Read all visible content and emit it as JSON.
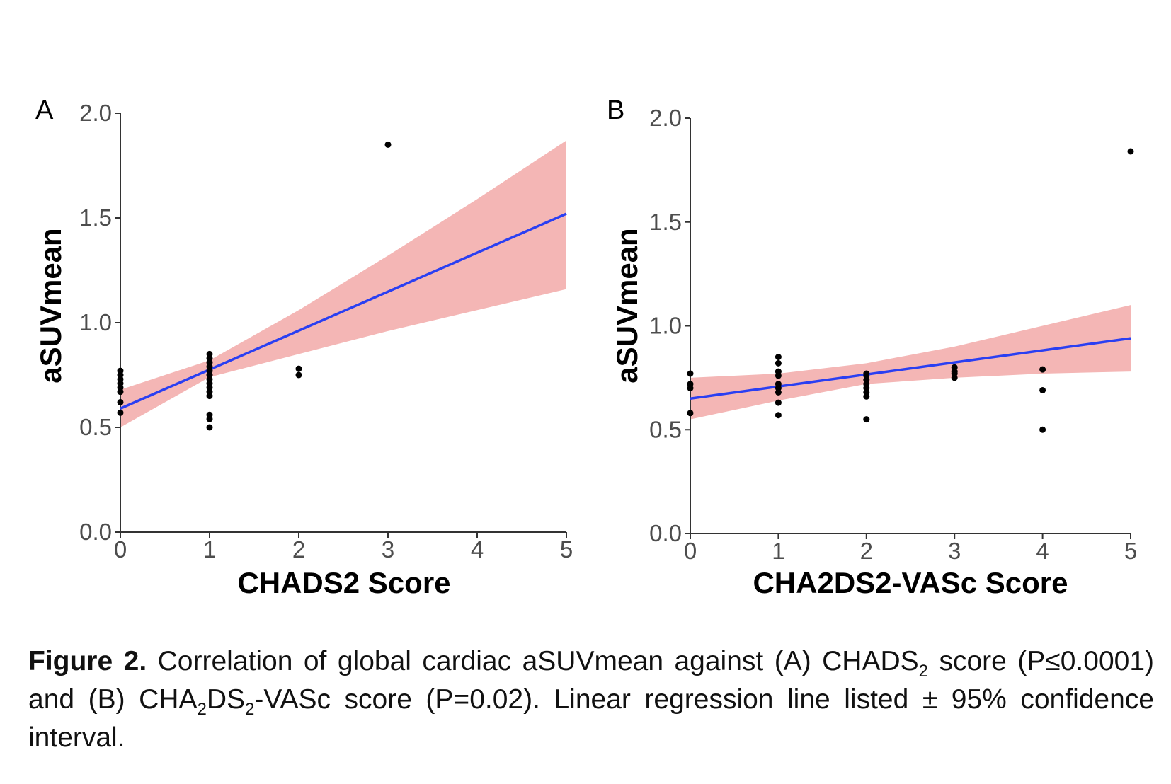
{
  "chart_data": [
    {
      "type": "scatter",
      "panel": "A",
      "xlabel": "CHADS2 Score",
      "ylabel": "aSUVmean",
      "xlim": [
        0,
        5
      ],
      "ylim": [
        0,
        2.0
      ],
      "xticks": [
        "0",
        "1",
        "2",
        "3",
        "4",
        "5"
      ],
      "yticks": [
        "0.0",
        "0.5",
        "1.0",
        "1.5",
        "2.0"
      ],
      "points": [
        [
          0,
          0.57
        ],
        [
          0,
          0.62
        ],
        [
          0,
          0.67
        ],
        [
          0,
          0.69
        ],
        [
          0,
          0.71
        ],
        [
          0,
          0.73
        ],
        [
          0,
          0.75
        ],
        [
          0,
          0.77
        ],
        [
          1,
          0.5
        ],
        [
          1,
          0.54
        ],
        [
          1,
          0.56
        ],
        [
          1,
          0.65
        ],
        [
          1,
          0.67
        ],
        [
          1,
          0.69
        ],
        [
          1,
          0.71
        ],
        [
          1,
          0.73
        ],
        [
          1,
          0.75
        ],
        [
          1,
          0.77
        ],
        [
          1,
          0.79
        ],
        [
          1,
          0.81
        ],
        [
          1,
          0.83
        ],
        [
          1,
          0.85
        ],
        [
          2,
          0.75
        ],
        [
          2,
          0.78
        ],
        [
          3,
          1.85
        ]
      ],
      "fit": {
        "x": [
          0,
          5
        ],
        "y": [
          0.59,
          1.52
        ]
      },
      "ci": {
        "x": [
          0,
          1,
          2,
          3,
          4,
          5
        ],
        "lower": [
          0.5,
          0.74,
          0.85,
          0.96,
          1.06,
          1.16
        ],
        "upper": [
          0.68,
          0.82,
          1.06,
          1.32,
          1.59,
          1.87
        ]
      },
      "line_color": "#2a3ff2",
      "band_color": "#f4b6b5"
    },
    {
      "type": "scatter",
      "panel": "B",
      "xlabel": "CHA2DS2-VASc Score",
      "ylabel": "aSUVmean",
      "xlim": [
        0,
        5
      ],
      "ylim": [
        0,
        2.0
      ],
      "xticks": [
        "0",
        "1",
        "2",
        "3",
        "4",
        "5"
      ],
      "yticks": [
        "0.0",
        "0.5",
        "1.0",
        "1.5",
        "2.0"
      ],
      "points": [
        [
          0,
          0.58
        ],
        [
          0,
          0.7
        ],
        [
          0,
          0.72
        ],
        [
          0,
          0.77
        ],
        [
          1,
          0.57
        ],
        [
          1,
          0.63
        ],
        [
          1,
          0.68
        ],
        [
          1,
          0.7
        ],
        [
          1,
          0.72
        ],
        [
          1,
          0.76
        ],
        [
          1,
          0.78
        ],
        [
          1,
          0.82
        ],
        [
          1,
          0.85
        ],
        [
          2,
          0.55
        ],
        [
          2,
          0.66
        ],
        [
          2,
          0.68
        ],
        [
          2,
          0.7
        ],
        [
          2,
          0.72
        ],
        [
          2,
          0.74
        ],
        [
          2,
          0.76
        ],
        [
          2,
          0.77
        ],
        [
          3,
          0.75
        ],
        [
          3,
          0.77
        ],
        [
          3,
          0.78
        ],
        [
          3,
          0.8
        ],
        [
          4,
          0.5
        ],
        [
          4,
          0.69
        ],
        [
          4,
          0.79
        ],
        [
          5,
          1.84
        ]
      ],
      "fit": {
        "x": [
          0,
          5
        ],
        "y": [
          0.65,
          0.94
        ]
      },
      "ci": {
        "x": [
          0,
          1,
          2,
          3,
          4,
          5
        ],
        "lower": [
          0.55,
          0.64,
          0.72,
          0.75,
          0.77,
          0.78
        ],
        "upper": [
          0.75,
          0.77,
          0.82,
          0.9,
          1.0,
          1.1
        ]
      },
      "line_color": "#2a3ff2",
      "band_color": "#f4b6b5"
    }
  ],
  "caption": {
    "lead": "Figure 2.",
    "part1": " Correlation of global cardiac aSUVmean against (A) CHADS",
    "sub1": "2",
    "part2": " score (P≤0.0001) and (B) CHA",
    "sub2": "2",
    "part3": "DS",
    "sub3": "2",
    "part4": "-VASc score (P=0.02). Linear regression line listed ± 95% confidence interval."
  }
}
